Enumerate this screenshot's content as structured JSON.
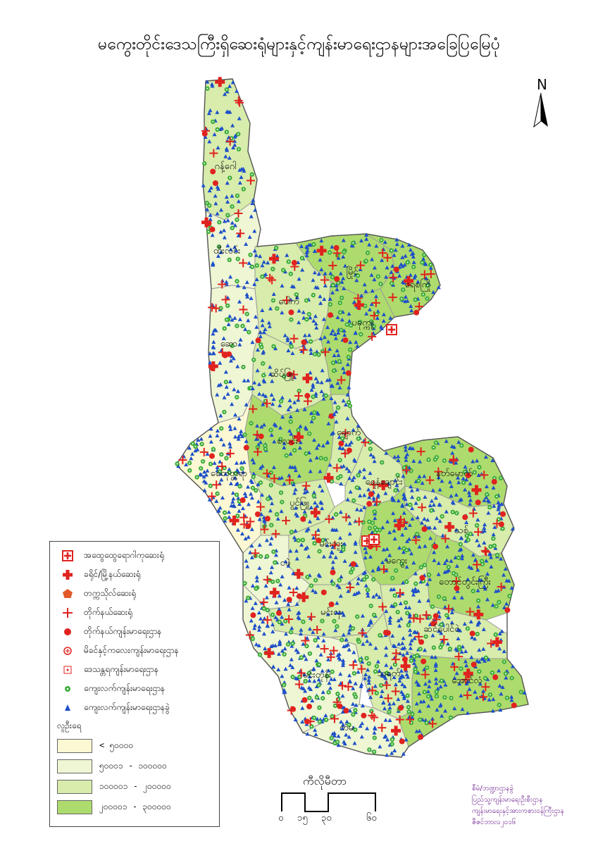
{
  "title": "မကွေးတိုင်းဒေသကြီးရှိဆေးရုံများနှင့်ကျန်းမာရေးဌာနများအခြေပြမြေပုံ",
  "north_label": "N",
  "colors": {
    "class1": "#fbf8d3",
    "class2": "#eef6d4",
    "class3": "#d8ecab",
    "class4": "#aedb6d",
    "hospital_red": "#e0231f",
    "rural_green": "#3fae3b",
    "subcenter_blue": "#1d4fc9"
  },
  "townships": [
    {
      "name": "ဂန့်ဂေါ",
      "population_class": 3
    },
    {
      "name": "ထီးလင်း",
      "population_class": 2
    },
    {
      "name": "ဆော",
      "population_class": 2
    },
    {
      "name": "ပေါက်",
      "population_class": 3
    },
    {
      "name": "ဆိပ်ဖြူ",
      "population_class": 3
    },
    {
      "name": "မြိုင်",
      "population_class": 4
    },
    {
      "name": "ရေစကြို",
      "population_class": 4
    },
    {
      "name": "ပခုက္ကူ",
      "population_class": 4
    },
    {
      "name": "စလင်း",
      "population_class": 4
    },
    {
      "name": "ချောက်",
      "population_class": 3
    },
    {
      "name": "စေတုတ္တရာ",
      "population_class": 1
    },
    {
      "name": "ပွင့်ဖြူ",
      "population_class": 3
    },
    {
      "name": "ရေနံချောင်း",
      "population_class": 3
    },
    {
      "name": "နတ်မောက်",
      "population_class": 4
    },
    {
      "name": "သစ်",
      "population_class": 3
    },
    {
      "name": "မင်းဘူး",
      "population_class": 3
    },
    {
      "name": "မကွေး",
      "population_class": 4
    },
    {
      "name": "ငဖဲ",
      "population_class": 2
    },
    {
      "name": "တောင်တွင်းကြီး",
      "population_class": 4
    },
    {
      "name": "မင်းလှ",
      "population_class": 3
    },
    {
      "name": "ဆင်ပေါင်ဝဲ",
      "population_class": 3
    },
    {
      "name": "မင်းတုန်း",
      "population_class": 2
    },
    {
      "name": "သရက်",
      "population_class": 3
    },
    {
      "name": "အောင်လံ",
      "population_class": 4
    },
    {
      "name": "ကံမ",
      "population_class": 2
    }
  ],
  "legend": {
    "items": [
      {
        "icon": "general-hospital-icon",
        "label": "အထွေထွေရောဂါကုဆေးရုံ"
      },
      {
        "icon": "district-township-hospital-icon",
        "label": "ခရိုင်/မြို့နယ်ဆေးရုံ"
      },
      {
        "icon": "traditional-medicine-hospital-icon",
        "label": "တက္ကသိုလ်ဆေးရုံ"
      },
      {
        "icon": "station-hospital-icon",
        "label": "တိုက်နယ်ဆေးရုံ"
      },
      {
        "icon": "station-health-center-icon",
        "label": "တိုက်နယ်ကျန်းမာရေးဌာန"
      },
      {
        "icon": "maternal-child-center-icon",
        "label": "မိခင်နှင့်ကလေးကျန်းမာရေးဌာန"
      },
      {
        "icon": "school-health-center-icon",
        "label": "ဒေသန္တရကျန်းမာရေးဌာန"
      },
      {
        "icon": "rural-health-center-icon",
        "label": "ကျေးလက်ကျန်းမာရေးဌာန"
      },
      {
        "icon": "rural-subcenter-icon",
        "label": "ကျေးလက်ကျန်းမာရေးဌာနခွဲ"
      }
    ],
    "population_title": "လူဦးရေ",
    "population_classes": [
      {
        "label": "< ၅၀၀၀၀"
      },
      {
        "label": "၅၀၀၀၁ - ၁၀၀၀၀၀"
      },
      {
        "label": "၁၀၀၀၀၁ - ၂၀၀၀၀၀"
      },
      {
        "label": "၂၀၀၀၀၁ - ၃၀၀၀၀၀"
      }
    ]
  },
  "scale": {
    "unit": "ကီလိုမီတာ",
    "ticks": [
      "၀",
      "၁၅",
      "၃၀",
      "၆၀"
    ]
  },
  "credits": [
    "စီမံ/ဘဏ္ဍာဌာနခွဲ",
    "ပြည်သူ့ကျန်းမာရေးဦးစီးဌာန",
    "ကျန်းမာရေးနှင့်အားကစားဝန်ကြီးဌာန",
    "ဇီဇင်ဘာလ၂၀၁၆"
  ]
}
